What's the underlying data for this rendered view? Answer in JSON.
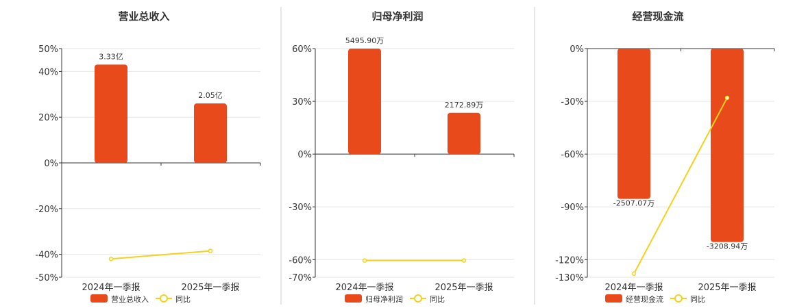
{
  "colors": {
    "bar": "#E84A1C",
    "line": "#F2D21B"
  },
  "chart_data": [
    {
      "type": "bar",
      "title": "营业总收入",
      "categories": [
        "2024年一季报",
        "2025年一季报"
      ],
      "series": [
        {
          "name": "营业总收入",
          "type": "bar",
          "values": [
            0.43,
            0.26
          ],
          "labels": [
            "3.33亿",
            "2.05亿"
          ]
        },
        {
          "name": "同比",
          "type": "line",
          "values": [
            -0.42,
            -0.385
          ]
        }
      ],
      "ylim": [
        -0.5,
        0.5
      ],
      "yticks": [
        {
          "v": 0.5,
          "t": "50%"
        },
        {
          "v": 0.4,
          "t": "40%"
        },
        {
          "v": 0.2,
          "t": "20%"
        },
        {
          "v": 0.0,
          "t": "0%"
        },
        {
          "v": -0.2,
          "t": "-20%"
        },
        {
          "v": -0.4,
          "t": "-40%"
        },
        {
          "v": -0.5,
          "t": "-50%"
        }
      ],
      "legend": [
        "营业总收入",
        "同比"
      ]
    },
    {
      "type": "bar",
      "title": "归母净利润",
      "categories": [
        "2024年一季报",
        "2025年一季报"
      ],
      "series": [
        {
          "name": "归母净利润",
          "type": "bar",
          "values": [
            0.6,
            0.235
          ],
          "labels": [
            "5495.90万",
            "2172.89万"
          ]
        },
        {
          "name": "同比",
          "type": "line",
          "values": [
            -0.605,
            -0.605
          ]
        }
      ],
      "ylim": [
        -0.7,
        0.6
      ],
      "yticks": [
        {
          "v": 0.6,
          "t": "60%"
        },
        {
          "v": 0.3,
          "t": "30%"
        },
        {
          "v": 0.0,
          "t": "0%"
        },
        {
          "v": -0.3,
          "t": "-30%"
        },
        {
          "v": -0.6,
          "t": "-60%"
        },
        {
          "v": -0.7,
          "t": "-70%"
        }
      ],
      "legend": [
        "归母净利润",
        "同比"
      ]
    },
    {
      "type": "bar",
      "title": "经营现金流",
      "categories": [
        "2024年一季报",
        "2025年一季报"
      ],
      "series": [
        {
          "name": "经营现金流",
          "type": "bar",
          "values": [
            -0.855,
            -1.1
          ],
          "labels": [
            "-2507.07万",
            "-3208.94万"
          ]
        },
        {
          "name": "同比",
          "type": "line",
          "values": [
            -1.28,
            -0.28
          ]
        }
      ],
      "ylim": [
        -1.3,
        0.0
      ],
      "yticks": [
        {
          "v": 0.0,
          "t": "0%"
        },
        {
          "v": -0.3,
          "t": "-30%"
        },
        {
          "v": -0.6,
          "t": "-60%"
        },
        {
          "v": -0.9,
          "t": "-90%"
        },
        {
          "v": -1.2,
          "t": "-120%"
        },
        {
          "v": -1.3,
          "t": "-130%"
        }
      ],
      "legend": [
        "经营现金流",
        "同比"
      ]
    }
  ]
}
